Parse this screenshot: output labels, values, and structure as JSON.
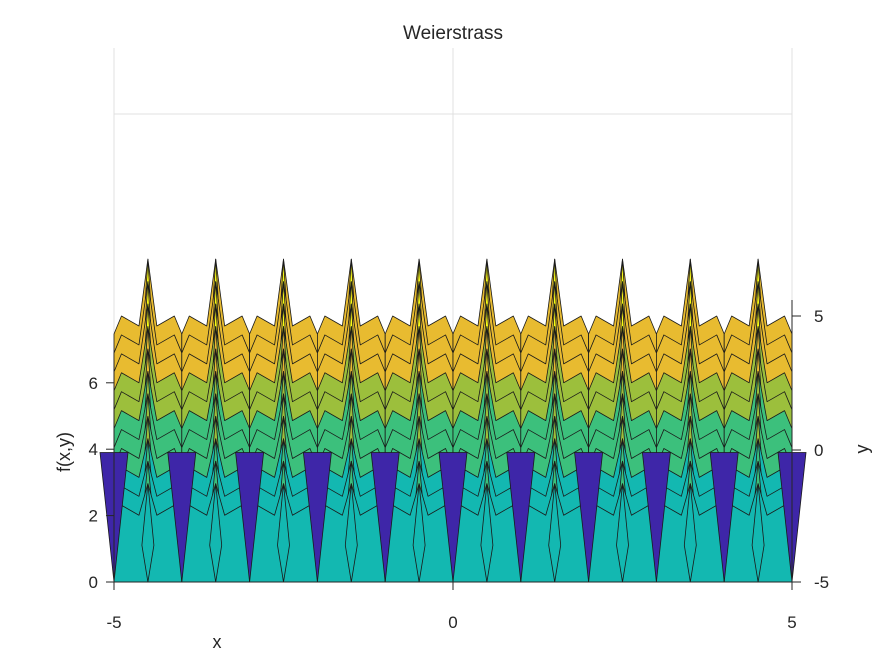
{
  "chart_data": {
    "type": "surface",
    "title": "Weierstrass",
    "xlabel": "x",
    "ylabel": "y",
    "zlabel": "f(x,y)",
    "xlim": [
      -5,
      5
    ],
    "ylim": [
      -5,
      5
    ],
    "zlim": [
      0,
      8
    ],
    "x_ticks": [
      "-5",
      "0",
      "5"
    ],
    "y_ticks": [
      "-5",
      "0",
      "5"
    ],
    "z_ticks": [
      "0",
      "2",
      "4",
      "6"
    ],
    "x_peaks": [
      -4.5,
      -3.5,
      -2.5,
      -1.5,
      -0.5,
      0.5,
      1.5,
      2.5,
      3.5,
      4.5
    ],
    "x_valleys": [
      -5,
      -4,
      -3,
      -2,
      -1,
      0,
      1,
      2,
      3,
      4,
      5
    ],
    "z_peak": 7.8,
    "z_valley": 0,
    "has_contour_floor": true,
    "grid": true,
    "colormap": [
      "#3e26a8",
      "#2f5ef5",
      "#1496da",
      "#13b8b1",
      "#3cc07c",
      "#9cbf3c",
      "#e8bb30",
      "#f9fb15"
    ]
  }
}
